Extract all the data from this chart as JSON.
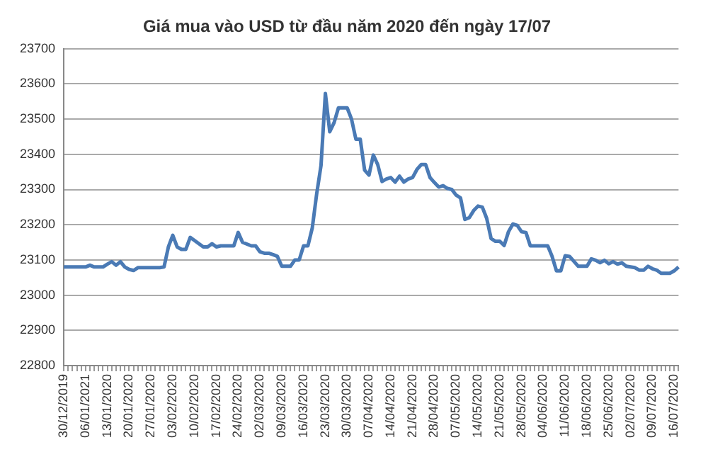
{
  "chart_data": {
    "type": "line",
    "title": "Giá mua vào USD từ đầu năm 2020 đến ngày 17/07",
    "categories": [
      "30/12/2019",
      null,
      null,
      null,
      null,
      "06/01/2021",
      null,
      null,
      null,
      null,
      "13/01/2020",
      null,
      null,
      null,
      null,
      "20/01/2020",
      null,
      null,
      null,
      null,
      "27/01/2020",
      null,
      null,
      null,
      null,
      "03/02/2020",
      null,
      null,
      null,
      null,
      "10/02/2020",
      null,
      null,
      null,
      null,
      "17/02/2020",
      null,
      null,
      null,
      null,
      "24/02/2020",
      null,
      null,
      null,
      null,
      "02/03/2020",
      null,
      null,
      null,
      null,
      "09/03/2020",
      null,
      null,
      null,
      null,
      "16/03/2020",
      null,
      null,
      null,
      null,
      "23/03/2020",
      null,
      null,
      null,
      null,
      "30/03/2020",
      null,
      null,
      null,
      null,
      "07/04/2020",
      null,
      null,
      null,
      null,
      "14/04/2020",
      null,
      null,
      null,
      null,
      "21/04/2020",
      null,
      null,
      null,
      null,
      "28/04/2020",
      null,
      null,
      null,
      null,
      "07/05/2020",
      null,
      null,
      null,
      null,
      "14/05/2020",
      null,
      null,
      null,
      null,
      "21/05/2020",
      null,
      null,
      null,
      null,
      "28/05/2020",
      null,
      null,
      null,
      null,
      "04/06/2020",
      null,
      null,
      null,
      null,
      "11/06/2020",
      null,
      null,
      null,
      null,
      "18/06/2020",
      null,
      null,
      null,
      null,
      "25/06/2020",
      null,
      null,
      null,
      null,
      "02/07/2020",
      null,
      null,
      null,
      null,
      "09/07/2020",
      null,
      null,
      null,
      null,
      "16/07/2020",
      null
    ],
    "series": [
      {
        "color": "#4a7ab5",
        "values": [
          23080,
          23080,
          23080,
          23080,
          23080,
          23080,
          23085,
          23080,
          23080,
          23080,
          23088,
          23095,
          23085,
          23095,
          23080,
          23073,
          23070,
          23078,
          23078,
          23078,
          23078,
          23078,
          23078,
          23080,
          23137,
          23170,
          23137,
          23130,
          23130,
          23164,
          23155,
          23146,
          23137,
          23137,
          23146,
          23137,
          23140,
          23140,
          23140,
          23140,
          23178,
          23150,
          23145,
          23140,
          23140,
          23123,
          23119,
          23119,
          23115,
          23110,
          23082,
          23082,
          23082,
          23100,
          23100,
          23140,
          23140,
          23191,
          23287,
          23368,
          23573,
          23464,
          23490,
          23532,
          23532,
          23532,
          23500,
          23443,
          23443,
          23355,
          23341,
          23398,
          23371,
          23323,
          23330,
          23334,
          23321,
          23338,
          23321,
          23330,
          23334,
          23357,
          23371,
          23371,
          23334,
          23320,
          23307,
          23311,
          23303,
          23300,
          23284,
          23276,
          23215,
          23220,
          23240,
          23253,
          23250,
          23218,
          23161,
          23153,
          23153,
          23141,
          23180,
          23202,
          23198,
          23180,
          23178,
          23140,
          23140,
          23140,
          23140,
          23140,
          23110,
          23069,
          23069,
          23112,
          23110,
          23096,
          23082,
          23082,
          23082,
          23103,
          23099,
          23092,
          23099,
          23089,
          23095,
          23088,
          23092,
          23082,
          23080,
          23078,
          23071,
          23071,
          23082,
          23075,
          23071,
          23062,
          23062,
          23062,
          23069,
          23080
        ]
      }
    ],
    "ylim": [
      22800,
      23700
    ],
    "yticks": [
      22800,
      22900,
      23000,
      23100,
      23200,
      23300,
      23400,
      23500,
      23600,
      23700
    ],
    "grid": "y",
    "legend": false,
    "marker": "none",
    "line_style": "solid"
  }
}
